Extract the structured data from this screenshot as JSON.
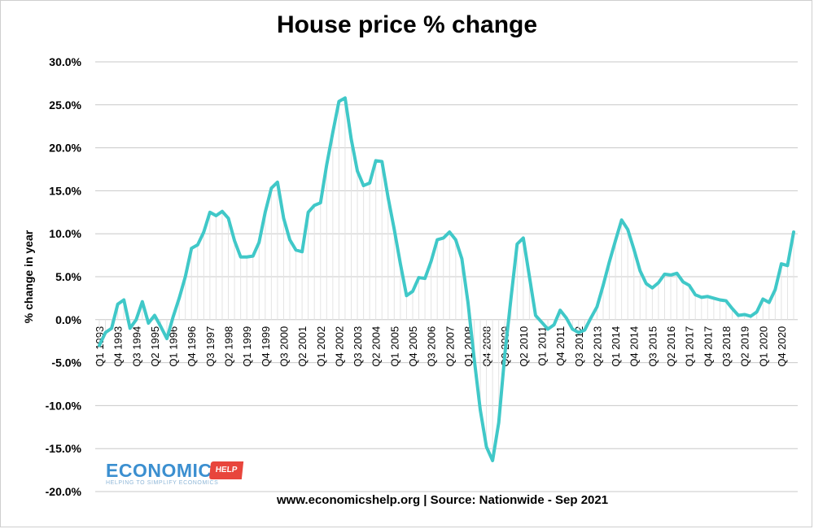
{
  "chart_data": {
    "type": "line",
    "title": "House price % change",
    "ylabel": "% change in year",
    "xlabel": "",
    "footer": "www.economicshelp.org | Source: Nationwide - Sep 2021",
    "ylim": [
      -20,
      30
    ],
    "yticks": [
      30,
      25,
      20,
      15,
      10,
      5,
      0,
      -5,
      -10,
      -15,
      -20
    ],
    "ytick_labels": [
      "30.0%",
      "25.0%",
      "20.0%",
      "15.0%",
      "10.0%",
      "5.0%",
      "0.0%",
      "-5.0%",
      "-10.0%",
      "-15.0%",
      "-20.0%"
    ],
    "grid": true,
    "legend": "none",
    "line_color": "#40c8c8",
    "x_tick_labels": [
      "Q1 1993",
      "Q4 1993",
      "Q3 1994",
      "Q2 1995",
      "Q1 1996",
      "Q4 1996",
      "Q3 1997",
      "Q2 1998",
      "Q1 1999",
      "Q4 1999",
      "Q3 2000",
      "Q2 2001",
      "Q1 2002",
      "Q4 2002",
      "Q3 2003",
      "Q2 2004",
      "Q1 2005",
      "Q4 2005",
      "Q3 2006",
      "Q2 2007",
      "Q1 2008",
      "Q4 2008",
      "Q3 2009",
      "Q2 2010",
      "Q1 2011",
      "Q4 2011",
      "Q3 2012",
      "Q2 2013",
      "Q1 2014",
      "Q4 2014",
      "Q3 2015",
      "Q2 2016",
      "Q1 2017",
      "Q4 2017",
      "Q3 2018",
      "Q2 2019",
      "Q1 2020",
      "Q4 2020"
    ],
    "series": [
      {
        "values": [
          -3.0,
          -1.5,
          -1.0,
          1.8,
          2.3,
          -1.0,
          0.0,
          2.1,
          -0.4,
          0.5,
          -0.8,
          -2.2,
          0.3,
          2.5,
          5.0,
          8.3,
          8.7,
          10.2,
          12.5,
          12.1,
          12.6,
          11.8,
          9.2,
          7.3,
          7.3,
          7.4,
          9.0,
          12.5,
          15.3,
          16.0,
          11.8,
          9.3,
          8.1,
          7.9,
          12.5,
          13.3,
          13.6,
          18.0,
          21.8,
          25.4,
          25.8,
          21.0,
          17.3,
          15.6,
          15.9,
          18.5,
          18.4,
          14.2,
          10.5,
          6.5,
          2.8,
          3.3,
          4.9,
          4.8,
          6.8,
          9.3,
          9.5,
          10.2,
          9.3,
          7.1,
          2.0,
          -4.5,
          -10.5,
          -14.8,
          -16.4,
          -12.0,
          -4.0,
          2.5,
          8.8,
          9.5,
          5.0,
          0.5,
          -0.3,
          -1.1,
          -0.6,
          1.1,
          0.2,
          -1.1,
          -1.5,
          -1.2,
          0.2,
          1.5,
          4.0,
          6.7,
          9.2,
          11.6,
          10.5,
          8.2,
          5.7,
          4.2,
          3.7,
          4.3,
          5.3,
          5.2,
          5.4,
          4.4,
          4.0,
          2.9,
          2.6,
          2.7,
          2.5,
          2.3,
          2.2,
          1.3,
          0.5,
          0.6,
          0.4,
          0.9,
          2.4,
          2.0,
          3.5,
          6.5,
          6.3,
          10.2
        ]
      }
    ]
  },
  "logo": {
    "word": "ECONOMICS",
    "tag": "HELP",
    "tagline": "HELPING TO SIMPLIFY ECONOMICS"
  }
}
